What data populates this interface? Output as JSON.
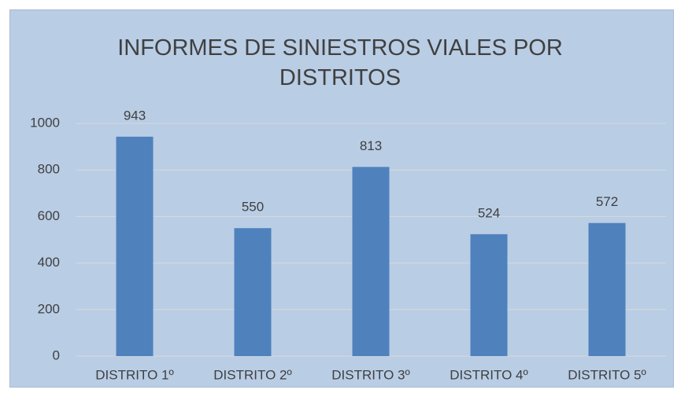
{
  "chart_data": {
    "type": "bar",
    "title": "INFORMES DE SINIESTROS VIALES POR DISTRITOS",
    "categories": [
      "DISTRITO 1º",
      "DISTRITO 2º",
      "DISTRITO 3º",
      "DISTRITO 4º",
      "DISTRITO 5º"
    ],
    "values": [
      943,
      550,
      813,
      524,
      572
    ],
    "color": "#4f81bd",
    "ylim": [
      0,
      1000
    ],
    "yticks": [
      0,
      200,
      400,
      600,
      800,
      1000
    ],
    "grid": true,
    "data_labels": true
  }
}
